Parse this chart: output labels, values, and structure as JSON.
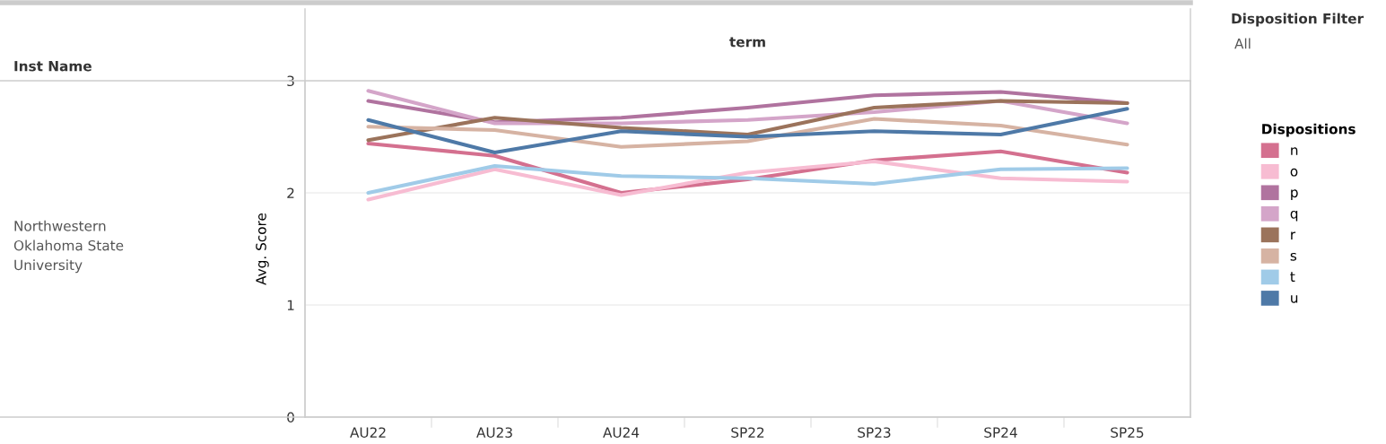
{
  "chart_data": {
    "type": "line",
    "title": "term",
    "ylabel": "Avg. Score",
    "legend_title": "Dispositions",
    "annotations": [
      "Inst Name",
      "Northwestern\nOklahoma State\nUniversity",
      "Disposition Filter",
      "All"
    ],
    "categories": [
      "AU22",
      "AU23",
      "AU24",
      "SP22",
      "SP23",
      "SP24",
      "SP25"
    ],
    "ylim": [
      0,
      3
    ],
    "yticks": [
      0,
      1,
      2,
      3
    ],
    "grid": true,
    "legend": "right",
    "marker": "none",
    "line_style": "solid",
    "series": [
      {
        "name": "n",
        "color": "#d4708f",
        "values": [
          2.44,
          2.33,
          2.0,
          2.12,
          2.29,
          2.37,
          2.18
        ]
      },
      {
        "name": "o",
        "color": "#f7bcd2",
        "values": [
          1.94,
          2.21,
          1.98,
          2.18,
          2.28,
          2.13,
          2.1
        ]
      },
      {
        "name": "p",
        "color": "#b0739f",
        "values": [
          2.82,
          2.63,
          2.67,
          2.76,
          2.87,
          2.9,
          2.8
        ]
      },
      {
        "name": "q",
        "color": "#d4a5c9",
        "values": [
          2.91,
          2.62,
          2.62,
          2.65,
          2.72,
          2.82,
          2.62
        ]
      },
      {
        "name": "r",
        "color": "#9b735b",
        "values": [
          2.47,
          2.67,
          2.58,
          2.52,
          2.76,
          2.82,
          2.8
        ]
      },
      {
        "name": "s",
        "color": "#d6b3a3",
        "values": [
          2.59,
          2.56,
          2.41,
          2.46,
          2.66,
          2.6,
          2.43
        ]
      },
      {
        "name": "t",
        "color": "#a0cbe8",
        "values": [
          2.0,
          2.24,
          2.15,
          2.13,
          2.08,
          2.21,
          2.22
        ]
      },
      {
        "name": "u",
        "color": "#4e79a7",
        "values": [
          2.65,
          2.36,
          2.55,
          2.5,
          2.55,
          2.52,
          2.75
        ]
      }
    ]
  }
}
